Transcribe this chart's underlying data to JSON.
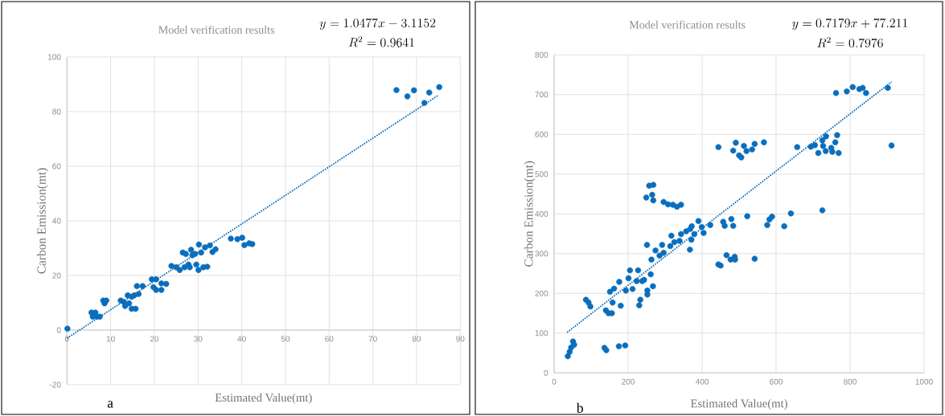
{
  "chart_data": [
    {
      "type": "scatter",
      "title": "Model verification results",
      "xlabel": "Estimated Value(mt)",
      "ylabel": "Carbon Emission(mt)",
      "annotations": [
        "y = 1.0477x - 3.1152",
        "R^{2} = 0.9641",
        "a"
      ],
      "xlim": [
        0,
        90
      ],
      "ylim": [
        -20,
        100
      ],
      "xticks": [
        0,
        10,
        20,
        30,
        40,
        50,
        60,
        70,
        80,
        90
      ],
      "yticks": [
        -20,
        0,
        20,
        40,
        60,
        80,
        100
      ],
      "grid": true,
      "series": [
        {
          "marker": "circle",
          "color": "#0a6ebd",
          "x": [
            0.1,
            5.6,
            6.8,
            7.5,
            5.9,
            6.5,
            8.3,
            9.0,
            8.6,
            12.3,
            13.0,
            13.3,
            13.9,
            14.2,
            14.8,
            15.7,
            14.8,
            15.4,
            16.0,
            16.4,
            17.3,
            19.4,
            20.4,
            19.8,
            20.4,
            21.6,
            21.6,
            22.7,
            23.9,
            25.0,
            25.8,
            26.5,
            27.2,
            26.9,
            27.8,
            28.4,
            28.7,
            29.3,
            28.1,
            29.6,
            30.1,
            30.2,
            30.7,
            31.2,
            32.1,
            31.6,
            32.7,
            33.3,
            34.0,
            37.5,
            39.0,
            40.1,
            40.6,
            41.7,
            42.4,
            75.4,
            77.9,
            79.4,
            81.8,
            82.9,
            85.2
          ],
          "values": [
            0.5,
            6.4,
            4.9,
            4.9,
            4.9,
            6.4,
            10.8,
            10.8,
            9.8,
            10.8,
            10.3,
            8.8,
            12.7,
            9.8,
            7.8,
            7.8,
            12.2,
            12.7,
            16.1,
            13.2,
            16.1,
            18.6,
            18.6,
            15.7,
            14.7,
            14.7,
            17.1,
            16.9,
            23.5,
            23.0,
            22.0,
            28.4,
            27.9,
            23.0,
            24.0,
            29.4,
            27.4,
            27.9,
            23.0,
            24.0,
            22.0,
            31.3,
            28.4,
            23.0,
            23.2,
            30.3,
            31.0,
            28.6,
            29.6,
            33.5,
            33.3,
            33.8,
            31.1,
            31.8,
            31.5,
            87.9,
            85.6,
            87.8,
            83.2,
            87.0,
            89.0
          ]
        },
        {
          "type": "line",
          "marker": "none",
          "color": "#0a6ebd",
          "line_style": "dotted",
          "x": [
            0,
            85
          ],
          "values": [
            -3,
            86
          ]
        }
      ]
    },
    {
      "type": "scatter",
      "title": "Model verification results",
      "xlabel": "Estimated Value(mt)",
      "ylabel": "Carbon Emission(mt)",
      "annotations": [
        "y = 0.7179x + 77.211",
        "R^{2} = 0.7976",
        "b"
      ],
      "xlim": [
        0,
        1000
      ],
      "ylim": [
        0,
        800
      ],
      "xticks": [
        0,
        200,
        400,
        600,
        800,
        1000
      ],
      "yticks": [
        0,
        100,
        200,
        300,
        400,
        500,
        600,
        700,
        800
      ],
      "grid": true,
      "series": [
        {
          "marker": "circle",
          "color": "#0a6ebd",
          "x": [
            37,
            42,
            46,
            51,
            54,
            86,
            93,
            98,
            136,
            141,
            175,
            192,
            140,
            147,
            156,
            158,
            151,
            162,
            180,
            176,
            194,
            201,
            212,
            205,
            227,
            223,
            238,
            243,
            230,
            233,
            252,
            252,
            261,
            267,
            249,
            257,
            268,
            265,
            268,
            251,
            263,
            274,
            285,
            292,
            296,
            314,
            317,
            325,
            339,
            343,
            357,
            368,
            372,
            379,
            390,
            367,
            371,
            399,
            404,
            422,
            296,
            308,
            321,
            332,
            343,
            457,
            461,
            479,
            484,
            522,
            444,
            450,
            466,
            477,
            488,
            489,
            542,
            576,
            582,
            589,
            622,
            640,
            725,
            444,
            484,
            491,
            500,
            506,
            513,
            520,
            535,
            542,
            567,
            657,
            694,
            705,
            714,
            725,
            727,
            735,
            734,
            749,
            752,
            760,
            765,
            769,
            912,
            762,
            791,
            807,
            825,
            834,
            843,
            902
          ],
          "values": [
            42,
            53,
            64,
            79,
            71,
            184,
            177,
            167,
            63,
            57,
            67,
            69,
            157,
            150,
            150,
            177,
            204,
            212,
            169,
            229,
            207,
            238,
            211,
            258,
            258,
            231,
            231,
            234,
            170,
            184,
            197,
            207,
            248,
            218,
            441,
            471,
            473,
            448,
            434,
            322,
            285,
            308,
            295,
            322,
            302,
            319,
            345,
            329,
            332,
            349,
            356,
            362,
            369,
            349,
            382,
            310,
            335,
            367,
            352,
            372,
            430,
            424,
            423,
            418,
            423,
            380,
            370,
            387,
            370,
            394,
            273,
            270,
            296,
            285,
            292,
            285,
            287,
            372,
            386,
            393,
            369,
            401,
            409,
            568,
            559,
            579,
            547,
            542,
            571,
            558,
            562,
            576,
            580,
            568,
            569,
            573,
            553,
            585,
            571,
            595,
            558,
            566,
            556,
            580,
            598,
            553,
            572,
            704,
            708,
            719,
            714,
            717,
            704,
            717
          ]
        },
        {
          "type": "line",
          "marker": "none",
          "color": "#0a6ebd",
          "line_style": "dotted",
          "x": [
            35,
            912
          ],
          "values": [
            102,
            732
          ]
        }
      ]
    }
  ]
}
